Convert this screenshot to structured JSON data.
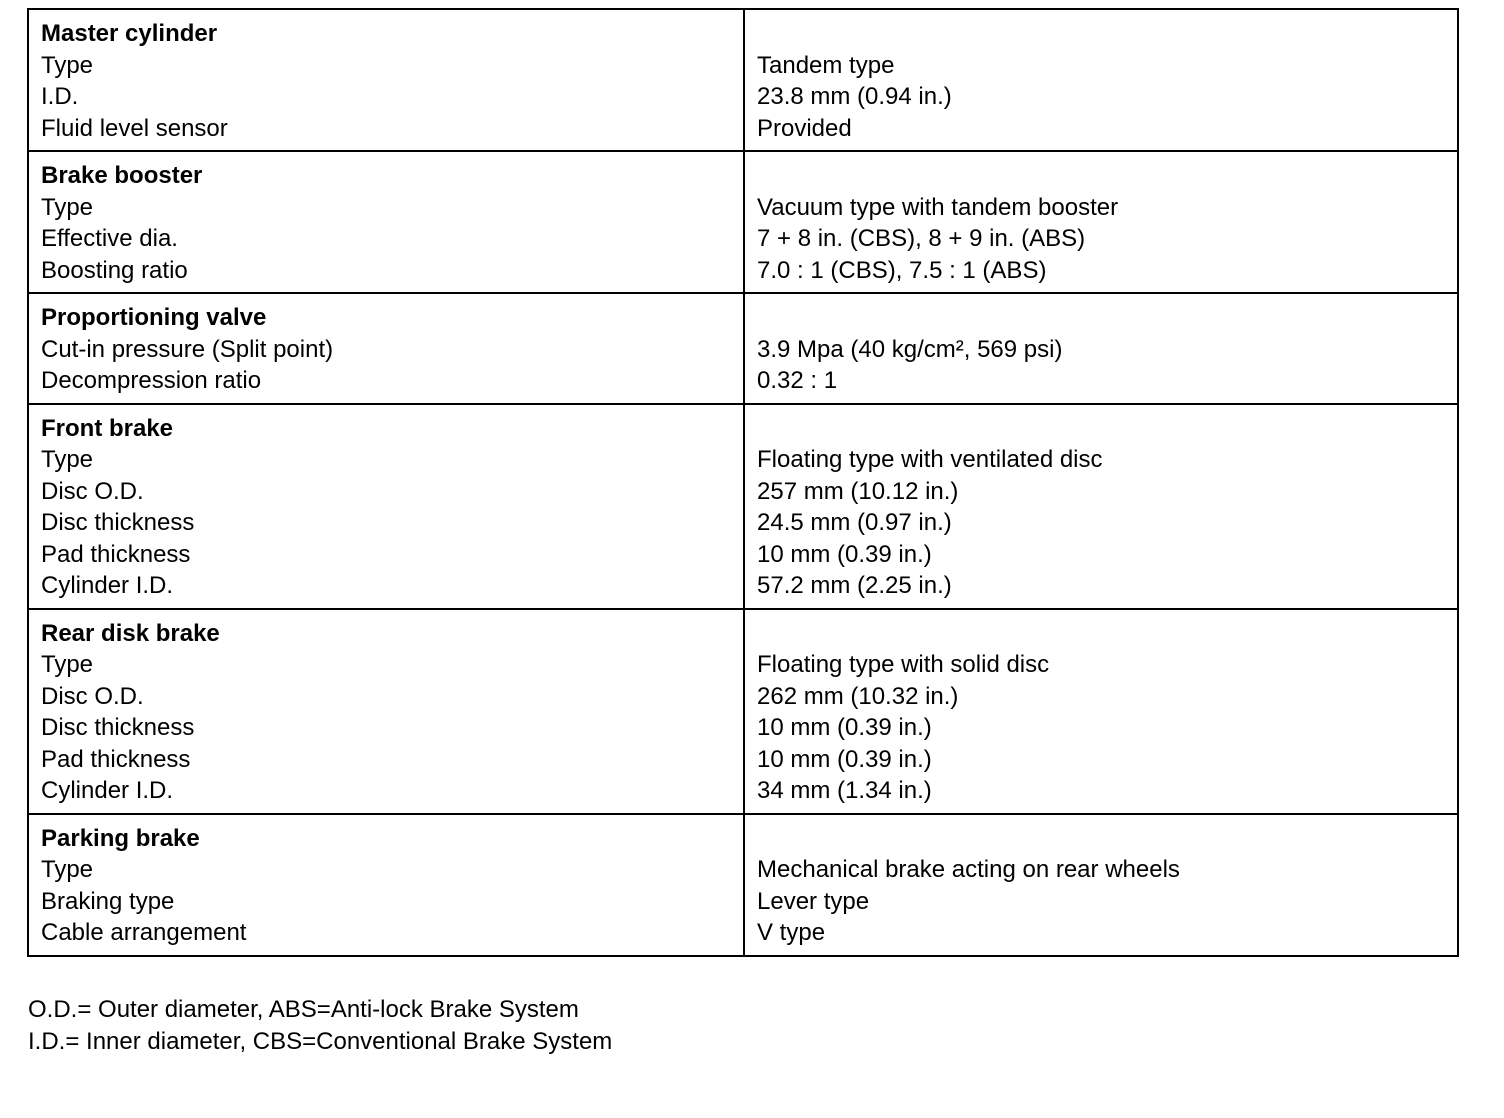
{
  "sections": [
    {
      "title": "Master cylinder",
      "rows": [
        [
          "Type",
          "Tandem type"
        ],
        [
          "I.D.",
          "23.8 mm (0.94 in.)"
        ],
        [
          "Fluid level sensor",
          "Provided"
        ]
      ]
    },
    {
      "title": "Brake booster",
      "rows": [
        [
          "Type",
          "Vacuum type with tandem booster"
        ],
        [
          "Effective dia.",
          "7 + 8 in.  (CBS), 8 + 9 in.  (ABS)"
        ],
        [
          "Boosting ratio",
          "7.0 :  1 (CBS), 7.5 :  1 (ABS)"
        ]
      ]
    },
    {
      "title": "Proportioning valve",
      "rows": [
        [
          "Cut-in pressure (Split point)",
          "3.9 Mpa (40 kg/cm², 569 psi)"
        ],
        [
          "Decompression ratio",
          "0.32  :  1"
        ]
      ]
    },
    {
      "title": "Front brake",
      "rows": [
        [
          "Type",
          "Floating type with ventilated disc"
        ],
        [
          "Disc O.D.",
          "257 mm (10.12 in.)"
        ],
        [
          "Disc thickness",
          "24.5 mm (0.97 in.)"
        ],
        [
          "Pad thickness",
          "10 mm (0.39 in.)"
        ],
        [
          "Cylinder I.D.",
          "57.2 mm (2.25 in.)"
        ]
      ]
    },
    {
      "title": "Rear disk brake",
      "rows": [
        [
          "Type",
          "Floating type with solid disc"
        ],
        [
          "Disc O.D.",
          "262 mm (10.32 in.)"
        ],
        [
          "Disc thickness",
          "10 mm (0.39 in.)"
        ],
        [
          "Pad thickness",
          "10 mm (0.39 in.)"
        ],
        [
          "Cylinder I.D.",
          "34 mm (1.34 in.)"
        ]
      ]
    },
    {
      "title": "Parking brake",
      "rows": [
        [
          "Type",
          "Mechanical brake acting on rear wheels"
        ],
        [
          "Braking type",
          "Lever type"
        ],
        [
          "Cable arrangement",
          "V type"
        ]
      ]
    }
  ],
  "notes": [
    "O.D.= Outer diameter, ABS=Anti-lock Brake System",
    "I.D.= Inner diameter, CBS=Conventional Brake System"
  ]
}
